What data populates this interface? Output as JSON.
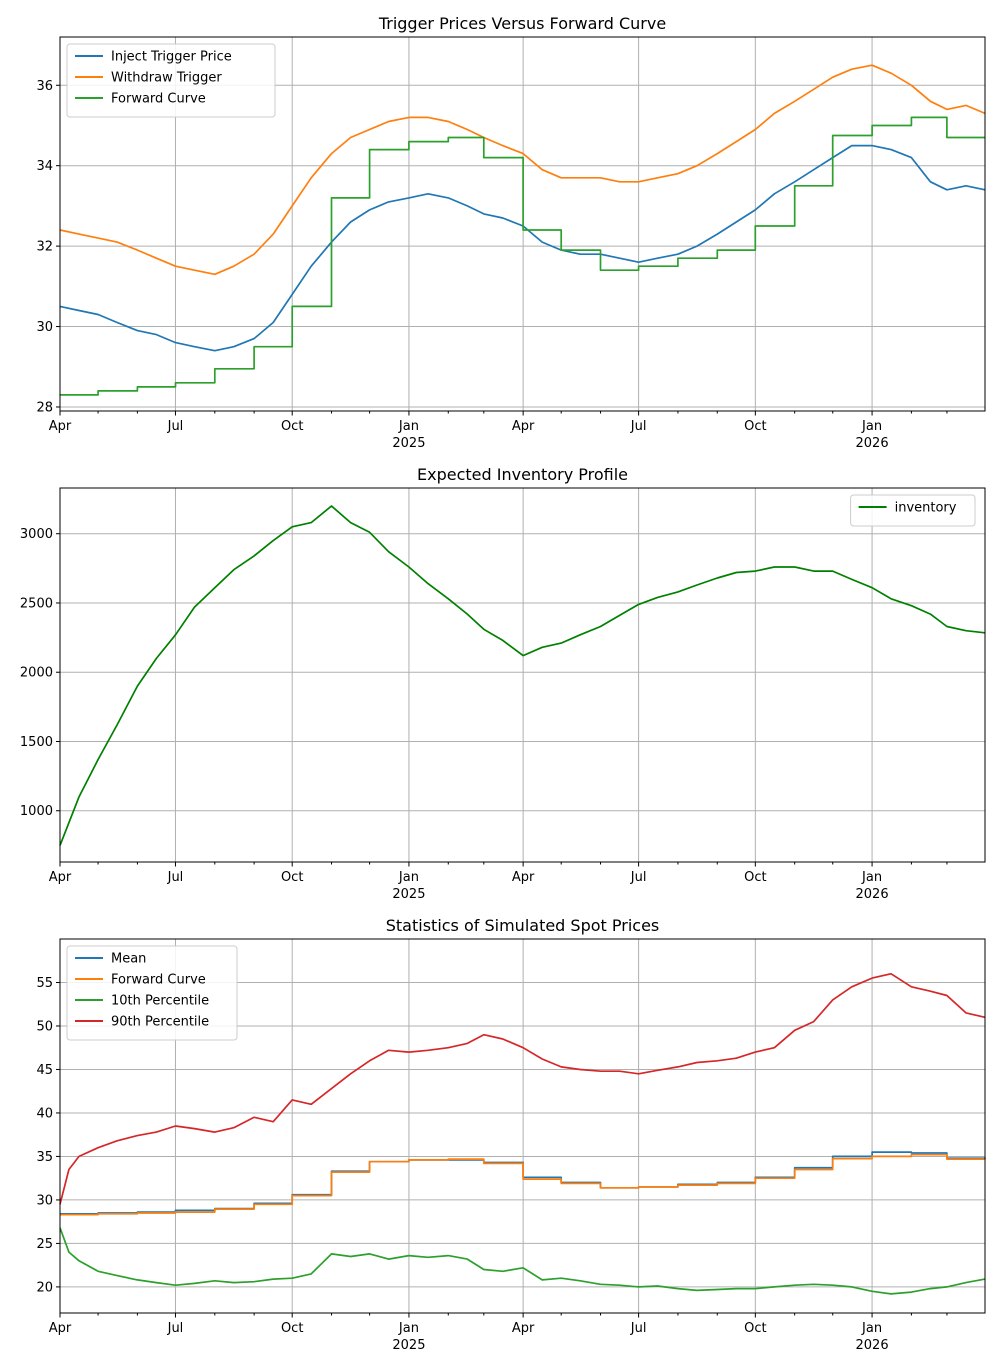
{
  "chart_data": [
    {
      "type": "line",
      "title": "Trigger Prices Versus Forward Curve",
      "xlabel": "",
      "ylabel": "",
      "ylim": [
        27.9,
        37.2
      ],
      "yticks": [
        28,
        30,
        32,
        34,
        36
      ],
      "grid": true,
      "legend": "top-left",
      "series": [
        {
          "name": "Inject Trigger Price",
          "color": "#1f77b4",
          "x": [
            "2024-04-01",
            "2024-04-16",
            "2024-05-01",
            "2024-05-16",
            "2024-06-01",
            "2024-06-16",
            "2024-07-01",
            "2024-07-16",
            "2024-08-01",
            "2024-08-16",
            "2024-09-01",
            "2024-09-16",
            "2024-10-01",
            "2024-10-16",
            "2024-11-01",
            "2024-11-16",
            "2024-12-01",
            "2024-12-16",
            "2025-01-01",
            "2025-01-16",
            "2025-02-01",
            "2025-02-16",
            "2025-03-01",
            "2025-03-16",
            "2025-04-01",
            "2025-04-16",
            "2025-05-01",
            "2025-05-16",
            "2025-06-01",
            "2025-06-16",
            "2025-07-01",
            "2025-07-16",
            "2025-08-01",
            "2025-08-16",
            "2025-09-01",
            "2025-09-16",
            "2025-10-01",
            "2025-10-16",
            "2025-11-01",
            "2025-11-16",
            "2025-12-01",
            "2025-12-16",
            "2026-01-01",
            "2026-01-16",
            "2026-02-01",
            "2026-02-16",
            "2026-03-01",
            "2026-03-16",
            "2026-03-31"
          ],
          "values": [
            30.5,
            30.4,
            30.3,
            30.1,
            29.9,
            29.8,
            29.6,
            29.5,
            29.4,
            29.5,
            29.7,
            30.1,
            30.8,
            31.5,
            32.1,
            32.6,
            32.9,
            33.1,
            33.2,
            33.3,
            33.2,
            33.0,
            32.8,
            32.7,
            32.5,
            32.1,
            31.9,
            31.8,
            31.8,
            31.7,
            31.6,
            31.7,
            31.8,
            32.0,
            32.3,
            32.6,
            32.9,
            33.3,
            33.6,
            33.9,
            34.2,
            34.5,
            34.5,
            34.4,
            34.2,
            33.6,
            33.4,
            33.5,
            33.4
          ]
        },
        {
          "name": "Withdraw Trigger",
          "color": "#ff7f0e",
          "x": [
            "2024-04-01",
            "2024-04-16",
            "2024-05-01",
            "2024-05-16",
            "2024-06-01",
            "2024-06-16",
            "2024-07-01",
            "2024-07-16",
            "2024-08-01",
            "2024-08-16",
            "2024-09-01",
            "2024-09-16",
            "2024-10-01",
            "2024-10-16",
            "2024-11-01",
            "2024-11-16",
            "2024-12-01",
            "2024-12-16",
            "2025-01-01",
            "2025-01-16",
            "2025-02-01",
            "2025-02-16",
            "2025-03-01",
            "2025-03-16",
            "2025-04-01",
            "2025-04-16",
            "2025-05-01",
            "2025-05-16",
            "2025-06-01",
            "2025-06-16",
            "2025-07-01",
            "2025-07-16",
            "2025-08-01",
            "2025-08-16",
            "2025-09-01",
            "2025-09-16",
            "2025-10-01",
            "2025-10-16",
            "2025-11-01",
            "2025-11-16",
            "2025-12-01",
            "2025-12-16",
            "2026-01-01",
            "2026-01-16",
            "2026-02-01",
            "2026-02-16",
            "2026-03-01",
            "2026-03-16",
            "2026-03-31"
          ],
          "values": [
            32.4,
            32.3,
            32.2,
            32.1,
            31.9,
            31.7,
            31.5,
            31.4,
            31.3,
            31.5,
            31.8,
            32.3,
            33.0,
            33.7,
            34.3,
            34.7,
            34.9,
            35.1,
            35.2,
            35.2,
            35.1,
            34.9,
            34.7,
            34.5,
            34.3,
            33.9,
            33.7,
            33.7,
            33.7,
            33.6,
            33.6,
            33.7,
            33.8,
            34.0,
            34.3,
            34.6,
            34.9,
            35.3,
            35.6,
            35.9,
            36.2,
            36.4,
            36.5,
            36.3,
            36.0,
            35.6,
            35.4,
            35.5,
            35.3
          ]
        },
        {
          "name": "Forward Curve",
          "color": "#2ca02c",
          "step": true,
          "x": [
            "2024-04-01",
            "2024-05-01",
            "2024-06-01",
            "2024-07-01",
            "2024-08-01",
            "2024-09-01",
            "2024-10-01",
            "2024-11-01",
            "2024-12-01",
            "2025-01-01",
            "2025-02-01",
            "2025-03-01",
            "2025-04-01",
            "2025-05-01",
            "2025-06-01",
            "2025-07-01",
            "2025-08-01",
            "2025-09-01",
            "2025-10-01",
            "2025-11-01",
            "2025-12-01",
            "2026-01-01",
            "2026-02-01",
            "2026-03-01",
            "2026-03-31"
          ],
          "values": [
            28.3,
            28.4,
            28.5,
            28.6,
            28.95,
            29.5,
            30.5,
            33.2,
            34.4,
            34.6,
            34.7,
            34.2,
            32.4,
            31.9,
            31.4,
            31.5,
            31.7,
            31.9,
            32.5,
            33.5,
            34.75,
            35.0,
            35.2,
            34.7,
            34.7
          ]
        }
      ]
    },
    {
      "type": "line",
      "title": "Expected Inventory Profile",
      "xlabel": "",
      "ylabel": "",
      "ylim": [
        630,
        3330
      ],
      "yticks": [
        1000,
        1500,
        2000,
        2500,
        3000
      ],
      "grid": true,
      "legend": "top-right",
      "series": [
        {
          "name": "inventory",
          "color": "#008000",
          "x": [
            "2024-04-01",
            "2024-04-16",
            "2024-05-01",
            "2024-05-16",
            "2024-06-01",
            "2024-06-16",
            "2024-07-01",
            "2024-07-16",
            "2024-08-01",
            "2024-08-16",
            "2024-09-01",
            "2024-09-16",
            "2024-10-01",
            "2024-10-16",
            "2024-11-01",
            "2024-11-16",
            "2024-12-01",
            "2024-12-16",
            "2025-01-01",
            "2025-01-16",
            "2025-02-01",
            "2025-02-16",
            "2025-03-01",
            "2025-03-16",
            "2025-04-01",
            "2025-04-16",
            "2025-05-01",
            "2025-05-16",
            "2025-06-01",
            "2025-06-16",
            "2025-07-01",
            "2025-07-16",
            "2025-08-01",
            "2025-08-16",
            "2025-09-01",
            "2025-09-16",
            "2025-10-01",
            "2025-10-16",
            "2025-11-01",
            "2025-11-16",
            "2025-12-01",
            "2025-12-16",
            "2026-01-01",
            "2026-01-16",
            "2026-02-01",
            "2026-02-16",
            "2026-03-01",
            "2026-03-16",
            "2026-03-31"
          ],
          "values": [
            750,
            1100,
            1370,
            1620,
            1900,
            2100,
            2270,
            2470,
            2610,
            2740,
            2840,
            2950,
            3050,
            3080,
            3200,
            3080,
            3010,
            2870,
            2760,
            2640,
            2530,
            2420,
            2310,
            2230,
            2120,
            2180,
            2210,
            2270,
            2330,
            2410,
            2490,
            2540,
            2580,
            2630,
            2680,
            2720,
            2730,
            2760,
            2760,
            2730,
            2730,
            2670,
            2610,
            2530,
            2480,
            2420,
            2330,
            2300,
            2285
          ]
        }
      ]
    },
    {
      "type": "line",
      "title": "Statistics of Simulated Spot Prices",
      "xlabel": "",
      "ylabel": "",
      "ylim": [
        17,
        60
      ],
      "yticks": [
        20,
        25,
        30,
        35,
        40,
        45,
        50,
        55
      ],
      "grid": true,
      "legend": "top-left",
      "series": [
        {
          "name": "Mean",
          "color": "#1f77b4",
          "step": true,
          "x": [
            "2024-04-01",
            "2024-05-01",
            "2024-06-01",
            "2024-07-01",
            "2024-08-01",
            "2024-09-01",
            "2024-10-01",
            "2024-11-01",
            "2024-12-01",
            "2025-01-01",
            "2025-02-01",
            "2025-03-01",
            "2025-04-01",
            "2025-05-01",
            "2025-06-01",
            "2025-07-01",
            "2025-08-01",
            "2025-09-01",
            "2025-10-01",
            "2025-11-01",
            "2025-12-01",
            "2026-01-01",
            "2026-02-01",
            "2026-03-01",
            "2026-03-31"
          ],
          "values": [
            28.4,
            28.5,
            28.6,
            28.8,
            29.0,
            29.6,
            30.6,
            33.3,
            34.4,
            34.6,
            34.6,
            34.3,
            32.6,
            32.0,
            31.4,
            31.5,
            31.8,
            32.0,
            32.6,
            33.7,
            35.0,
            35.5,
            35.4,
            34.8,
            34.7
          ]
        },
        {
          "name": "Forward Curve",
          "color": "#ff7f0e",
          "step": true,
          "x": [
            "2024-04-01",
            "2024-05-01",
            "2024-06-01",
            "2024-07-01",
            "2024-08-01",
            "2024-09-01",
            "2024-10-01",
            "2024-11-01",
            "2024-12-01",
            "2025-01-01",
            "2025-02-01",
            "2025-03-01",
            "2025-04-01",
            "2025-05-01",
            "2025-06-01",
            "2025-07-01",
            "2025-08-01",
            "2025-09-01",
            "2025-10-01",
            "2025-11-01",
            "2025-12-01",
            "2026-01-01",
            "2026-02-01",
            "2026-03-01",
            "2026-03-31"
          ],
          "values": [
            28.3,
            28.4,
            28.5,
            28.6,
            28.95,
            29.5,
            30.5,
            33.2,
            34.4,
            34.6,
            34.7,
            34.2,
            32.4,
            31.9,
            31.4,
            31.5,
            31.7,
            31.9,
            32.5,
            33.5,
            34.75,
            35.0,
            35.2,
            34.7,
            34.7
          ]
        },
        {
          "name": "10th Percentile",
          "color": "#2ca02c",
          "x": [
            "2024-04-01",
            "2024-04-08",
            "2024-04-16",
            "2024-05-01",
            "2024-05-16",
            "2024-06-01",
            "2024-06-16",
            "2024-07-01",
            "2024-07-16",
            "2024-08-01",
            "2024-08-16",
            "2024-09-01",
            "2024-09-16",
            "2024-10-01",
            "2024-10-16",
            "2024-11-01",
            "2024-11-16",
            "2024-12-01",
            "2024-12-16",
            "2025-01-01",
            "2025-01-16",
            "2025-02-01",
            "2025-02-16",
            "2025-03-01",
            "2025-03-16",
            "2025-04-01",
            "2025-04-16",
            "2025-05-01",
            "2025-05-16",
            "2025-06-01",
            "2025-06-16",
            "2025-07-01",
            "2025-07-16",
            "2025-08-01",
            "2025-08-16",
            "2025-09-01",
            "2025-09-16",
            "2025-10-01",
            "2025-10-16",
            "2025-11-01",
            "2025-11-16",
            "2025-12-01",
            "2025-12-16",
            "2026-01-01",
            "2026-01-16",
            "2026-02-01",
            "2026-02-16",
            "2026-03-01",
            "2026-03-16",
            "2026-03-31"
          ],
          "values": [
            26.8,
            24.0,
            23.0,
            21.8,
            21.3,
            20.8,
            20.5,
            20.2,
            20.4,
            20.7,
            20.5,
            20.6,
            20.9,
            21.0,
            21.5,
            23.8,
            23.5,
            23.8,
            23.2,
            23.6,
            23.4,
            23.6,
            23.2,
            22.0,
            21.8,
            22.2,
            20.8,
            21.0,
            20.7,
            20.3,
            20.2,
            20.0,
            20.1,
            19.8,
            19.6,
            19.7,
            19.8,
            19.8,
            20.0,
            20.2,
            20.3,
            20.2,
            20.0,
            19.5,
            19.2,
            19.4,
            19.8,
            20.0,
            20.5,
            20.9
          ]
        },
        {
          "name": "90th Percentile",
          "color": "#d62728",
          "x": [
            "2024-04-01",
            "2024-04-08",
            "2024-04-16",
            "2024-05-01",
            "2024-05-16",
            "2024-06-01",
            "2024-06-16",
            "2024-07-01",
            "2024-07-16",
            "2024-08-01",
            "2024-08-16",
            "2024-09-01",
            "2024-09-16",
            "2024-10-01",
            "2024-10-16",
            "2024-11-01",
            "2024-11-16",
            "2024-12-01",
            "2024-12-16",
            "2025-01-01",
            "2025-01-16",
            "2025-02-01",
            "2025-02-16",
            "2025-03-01",
            "2025-03-16",
            "2025-04-01",
            "2025-04-16",
            "2025-05-01",
            "2025-05-16",
            "2025-06-01",
            "2025-06-16",
            "2025-07-01",
            "2025-07-16",
            "2025-08-01",
            "2025-08-16",
            "2025-09-01",
            "2025-09-16",
            "2025-10-01",
            "2025-10-16",
            "2025-11-01",
            "2025-11-16",
            "2025-12-01",
            "2025-12-16",
            "2026-01-01",
            "2026-01-16",
            "2026-02-01",
            "2026-02-16",
            "2026-03-01",
            "2026-03-16",
            "2026-03-31"
          ],
          "values": [
            29.5,
            33.5,
            35.0,
            36.0,
            36.8,
            37.4,
            37.8,
            38.5,
            38.2,
            37.8,
            38.3,
            39.5,
            39.0,
            41.5,
            41.0,
            42.8,
            44.5,
            46.0,
            47.2,
            47.0,
            47.2,
            47.5,
            48.0,
            49.0,
            48.5,
            47.5,
            46.2,
            45.3,
            45.0,
            44.8,
            44.8,
            44.5,
            44.9,
            45.3,
            45.8,
            46.0,
            46.3,
            47.0,
            47.5,
            49.5,
            50.5,
            53.0,
            54.5,
            55.5,
            56.0,
            54.5,
            54.0,
            53.5,
            51.5,
            51.0
          ]
        }
      ]
    }
  ],
  "x_axis": {
    "start": "2024-04-01",
    "end": "2026-03-31",
    "major_ticks": [
      {
        "date": "2024-04-01",
        "label": "Apr",
        "year": ""
      },
      {
        "date": "2024-07-01",
        "label": "Jul",
        "year": ""
      },
      {
        "date": "2024-10-01",
        "label": "Oct",
        "year": ""
      },
      {
        "date": "2025-01-01",
        "label": "Jan",
        "year": "2025"
      },
      {
        "date": "2025-04-01",
        "label": "Apr",
        "year": ""
      },
      {
        "date": "2025-07-01",
        "label": "Jul",
        "year": ""
      },
      {
        "date": "2025-10-01",
        "label": "Oct",
        "year": ""
      },
      {
        "date": "2026-01-01",
        "label": "Jan",
        "year": "2026"
      }
    ],
    "minor_ticks": [
      "2024-05-01",
      "2024-06-01",
      "2024-08-01",
      "2024-09-01",
      "2024-11-01",
      "2024-12-01",
      "2025-02-01",
      "2025-03-01",
      "2025-05-01",
      "2025-06-01",
      "2025-08-01",
      "2025-09-01",
      "2025-11-01",
      "2025-12-01",
      "2026-02-01",
      "2026-03-01"
    ]
  }
}
